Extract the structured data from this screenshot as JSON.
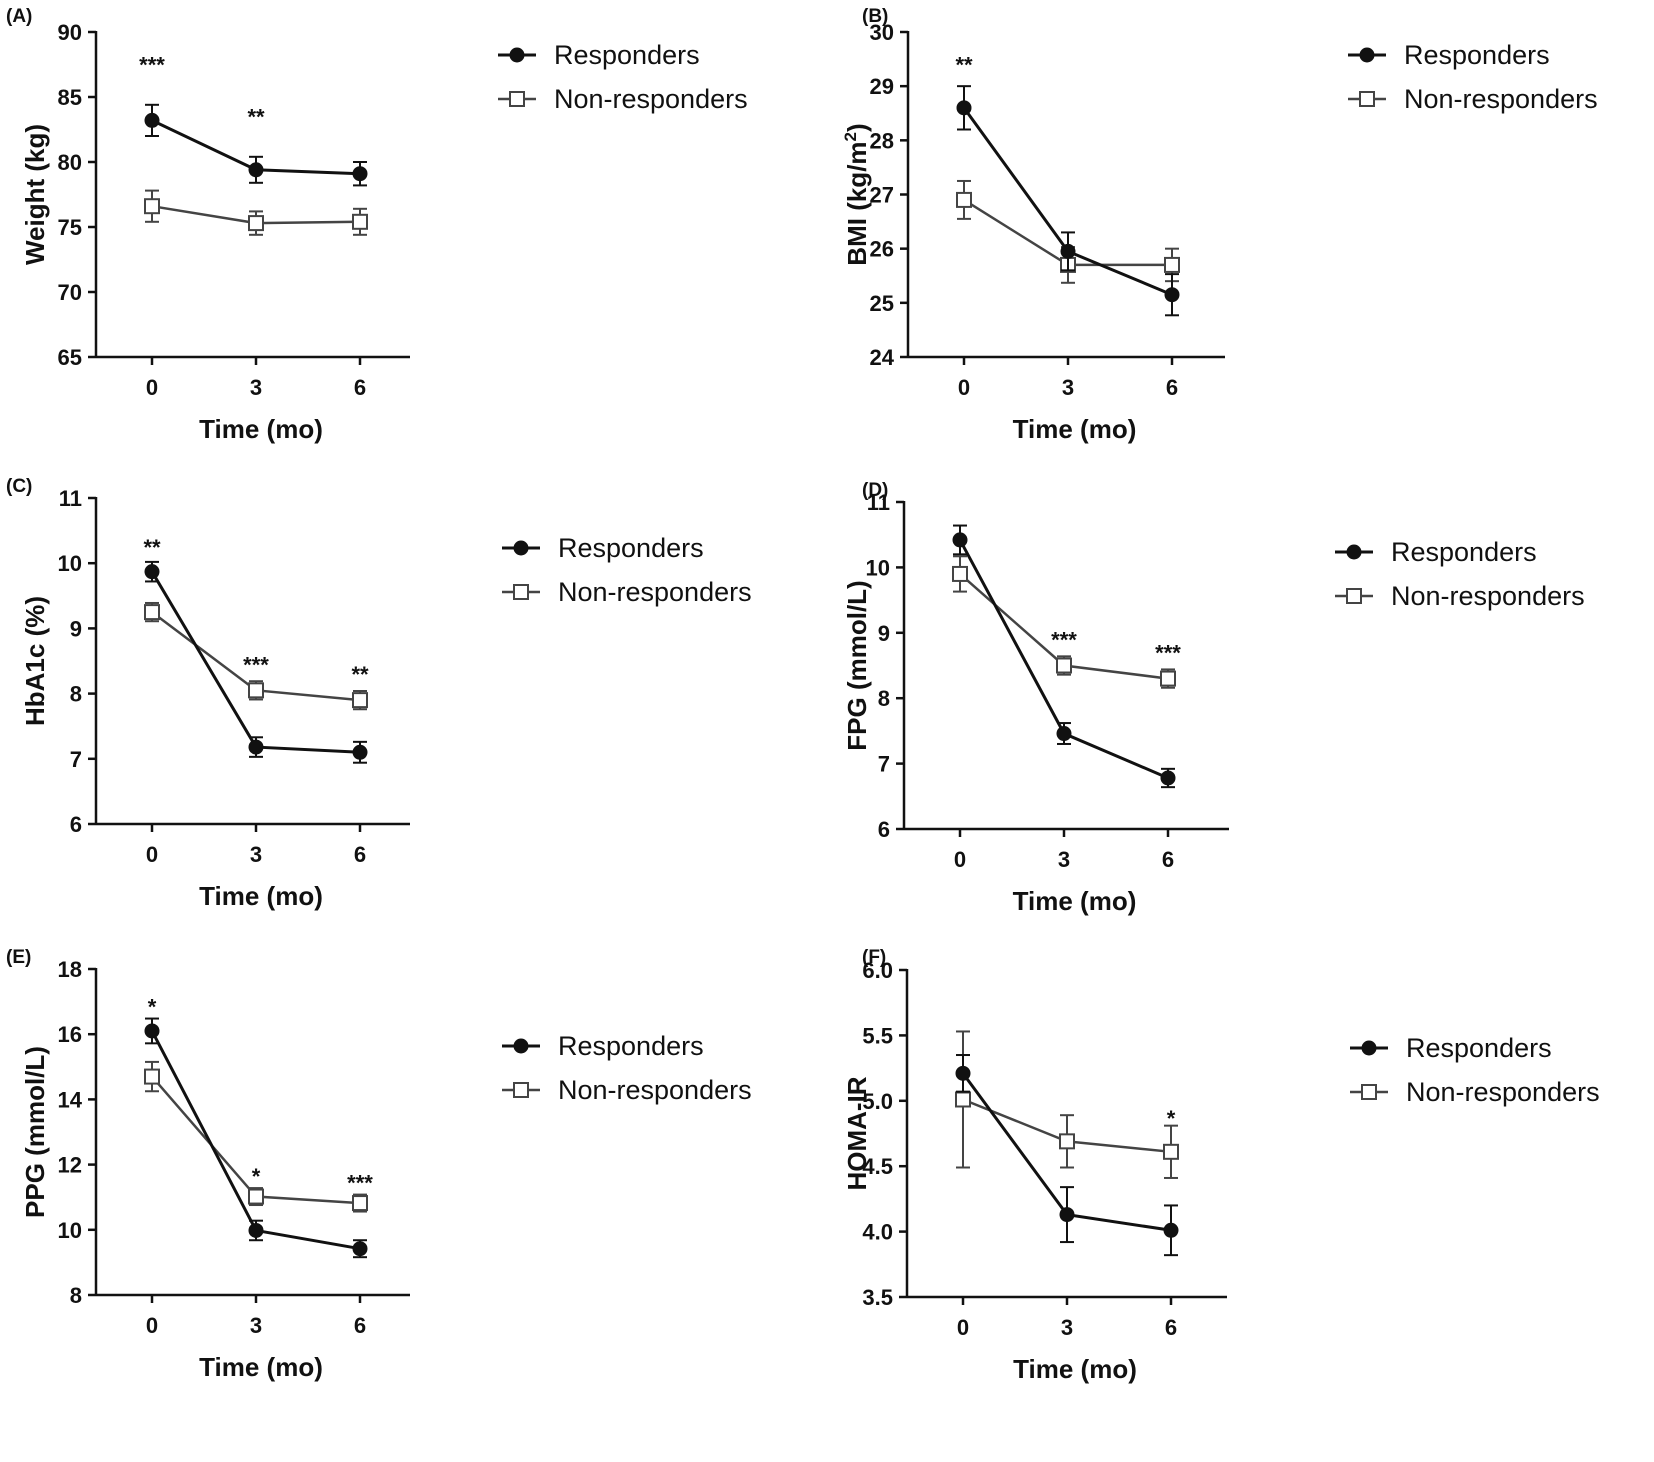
{
  "figure": {
    "legend_labels": [
      "Responders",
      "Non-responders"
    ],
    "series_colors": {
      "responders": "#111111",
      "non_responders": "#444444",
      "marker_fill": "#ffffff"
    }
  },
  "chart_data": [
    {
      "type": "line",
      "panel_label": "(A)",
      "xlabel": "Time (mo)",
      "ylabel": "Weight (kg)",
      "x": [
        0,
        3,
        6
      ],
      "ylim": [
        65,
        90
      ],
      "yticks": [
        65,
        70,
        75,
        80,
        85,
        90
      ],
      "ytick_labels": [
        "65",
        "70",
        "75",
        "80",
        "85",
        "90"
      ],
      "series": [
        {
          "name": "Responders",
          "marker": "filled-circle",
          "values": [
            83.2,
            79.4,
            79.1
          ],
          "errors": [
            1.2,
            1.0,
            0.9
          ]
        },
        {
          "name": "Non-responders",
          "marker": "open-square",
          "values": [
            76.6,
            75.3,
            75.4
          ],
          "errors": [
            1.2,
            0.9,
            1.0
          ]
        }
      ],
      "annotations": [
        {
          "x": 0,
          "y": 87.5,
          "text": "***"
        },
        {
          "x": 3,
          "y": 83.5,
          "text": "**"
        }
      ]
    },
    {
      "type": "line",
      "panel_label": "(B)",
      "xlabel": "Time (mo)",
      "ylabel": "BMI (kg/m",
      "ylabel_superscript": "2",
      "ylabel_suffix": ")",
      "x": [
        0,
        3,
        6
      ],
      "ylim": [
        24,
        30
      ],
      "yticks": [
        24,
        25,
        26,
        27,
        28,
        29,
        30
      ],
      "ytick_labels": [
        "24",
        "25",
        "26",
        "27",
        "28",
        "29",
        "30"
      ],
      "series": [
        {
          "name": "Responders",
          "marker": "filled-circle",
          "values": [
            28.6,
            25.95,
            25.15
          ],
          "errors": [
            0.4,
            0.35,
            0.38
          ]
        },
        {
          "name": "Non-responders",
          "marker": "open-square",
          "values": [
            26.9,
            25.7,
            25.7
          ],
          "errors": [
            0.35,
            0.33,
            0.3
          ]
        }
      ],
      "annotations": [
        {
          "x": 0,
          "y": 29.4,
          "text": "**"
        }
      ]
    },
    {
      "type": "line",
      "panel_label": "(C)",
      "xlabel": "Time (mo)",
      "ylabel": "HbA1c (%)",
      "x": [
        0,
        3,
        6
      ],
      "ylim": [
        6,
        11
      ],
      "yticks": [
        6,
        7,
        8,
        9,
        10,
        11
      ],
      "ytick_labels": [
        "6",
        "7",
        "8",
        "9",
        "10",
        "11"
      ],
      "series": [
        {
          "name": "Responders",
          "marker": "filled-circle",
          "values": [
            9.87,
            7.18,
            7.1
          ],
          "errors": [
            0.15,
            0.15,
            0.16
          ]
        },
        {
          "name": "Non-responders",
          "marker": "open-square",
          "values": [
            9.25,
            8.05,
            7.9
          ],
          "errors": [
            0.14,
            0.14,
            0.14
          ]
        }
      ],
      "annotations": [
        {
          "x": 0,
          "y": 10.25,
          "text": "**"
        },
        {
          "x": 3,
          "y": 8.45,
          "text": "***"
        },
        {
          "x": 6,
          "y": 8.3,
          "text": "**"
        }
      ]
    },
    {
      "type": "line",
      "panel_label": "(D)",
      "xlabel": "Time (mo)",
      "ylabel": "FPG (mmol/L)",
      "x": [
        0,
        3,
        6
      ],
      "ylim": [
        6,
        11
      ],
      "yticks": [
        6,
        7,
        8,
        9,
        10,
        11
      ],
      "ytick_labels": [
        "6",
        "7",
        "8",
        "9",
        "10",
        "11"
      ],
      "series": [
        {
          "name": "Responders",
          "marker": "filled-circle",
          "values": [
            10.42,
            7.46,
            6.78
          ],
          "errors": [
            0.22,
            0.16,
            0.14
          ]
        },
        {
          "name": "Non-responders",
          "marker": "open-square",
          "values": [
            9.9,
            8.5,
            8.3
          ],
          "errors": [
            0.27,
            0.14,
            0.14
          ]
        }
      ],
      "annotations": [
        {
          "x": 3,
          "y": 8.9,
          "text": "***"
        },
        {
          "x": 6,
          "y": 8.7,
          "text": "***"
        }
      ]
    },
    {
      "type": "line",
      "panel_label": "(E)",
      "xlabel": "Time (mo)",
      "ylabel": "PPG (mmol/L)",
      "x": [
        0,
        3,
        6
      ],
      "ylim": [
        8,
        18
      ],
      "yticks": [
        8,
        10,
        12,
        14,
        16,
        18
      ],
      "ytick_labels": [
        "8",
        "10",
        "12",
        "14",
        "16",
        "18"
      ],
      "series": [
        {
          "name": "Responders",
          "marker": "filled-circle",
          "values": [
            16.1,
            9.98,
            9.42
          ],
          "errors": [
            0.38,
            0.3,
            0.26
          ]
        },
        {
          "name": "Non-responders",
          "marker": "open-square",
          "values": [
            14.7,
            11.02,
            10.82
          ],
          "errors": [
            0.45,
            0.26,
            0.26
          ]
        }
      ],
      "annotations": [
        {
          "x": 0,
          "y": 16.85,
          "text": "*"
        },
        {
          "x": 3,
          "y": 11.65,
          "text": "*"
        },
        {
          "x": 6,
          "y": 11.45,
          "text": "***"
        }
      ]
    },
    {
      "type": "line",
      "panel_label": "(F)",
      "xlabel": "Time (mo)",
      "ylabel": "HOMA-IR",
      "x": [
        0,
        3,
        6
      ],
      "ylim": [
        3.5,
        6.0
      ],
      "yticks": [
        3.5,
        4.0,
        4.5,
        5.0,
        5.5,
        6.0
      ],
      "ytick_labels": [
        "3.5",
        "4.0",
        "4.5",
        "5.0",
        "5.5",
        "6.0"
      ],
      "series": [
        {
          "name": "Responders",
          "marker": "filled-circle",
          "values": [
            5.21,
            4.13,
            4.01
          ],
          "errors": [
            0.14,
            0.21,
            0.19
          ]
        },
        {
          "name": "Non-responders",
          "marker": "open-square",
          "values": [
            5.01,
            4.69,
            4.61
          ],
          "errors": [
            0.52,
            0.2,
            0.2
          ]
        }
      ],
      "annotations": [
        {
          "x": 6,
          "y": 4.87,
          "text": "*"
        }
      ]
    }
  ]
}
